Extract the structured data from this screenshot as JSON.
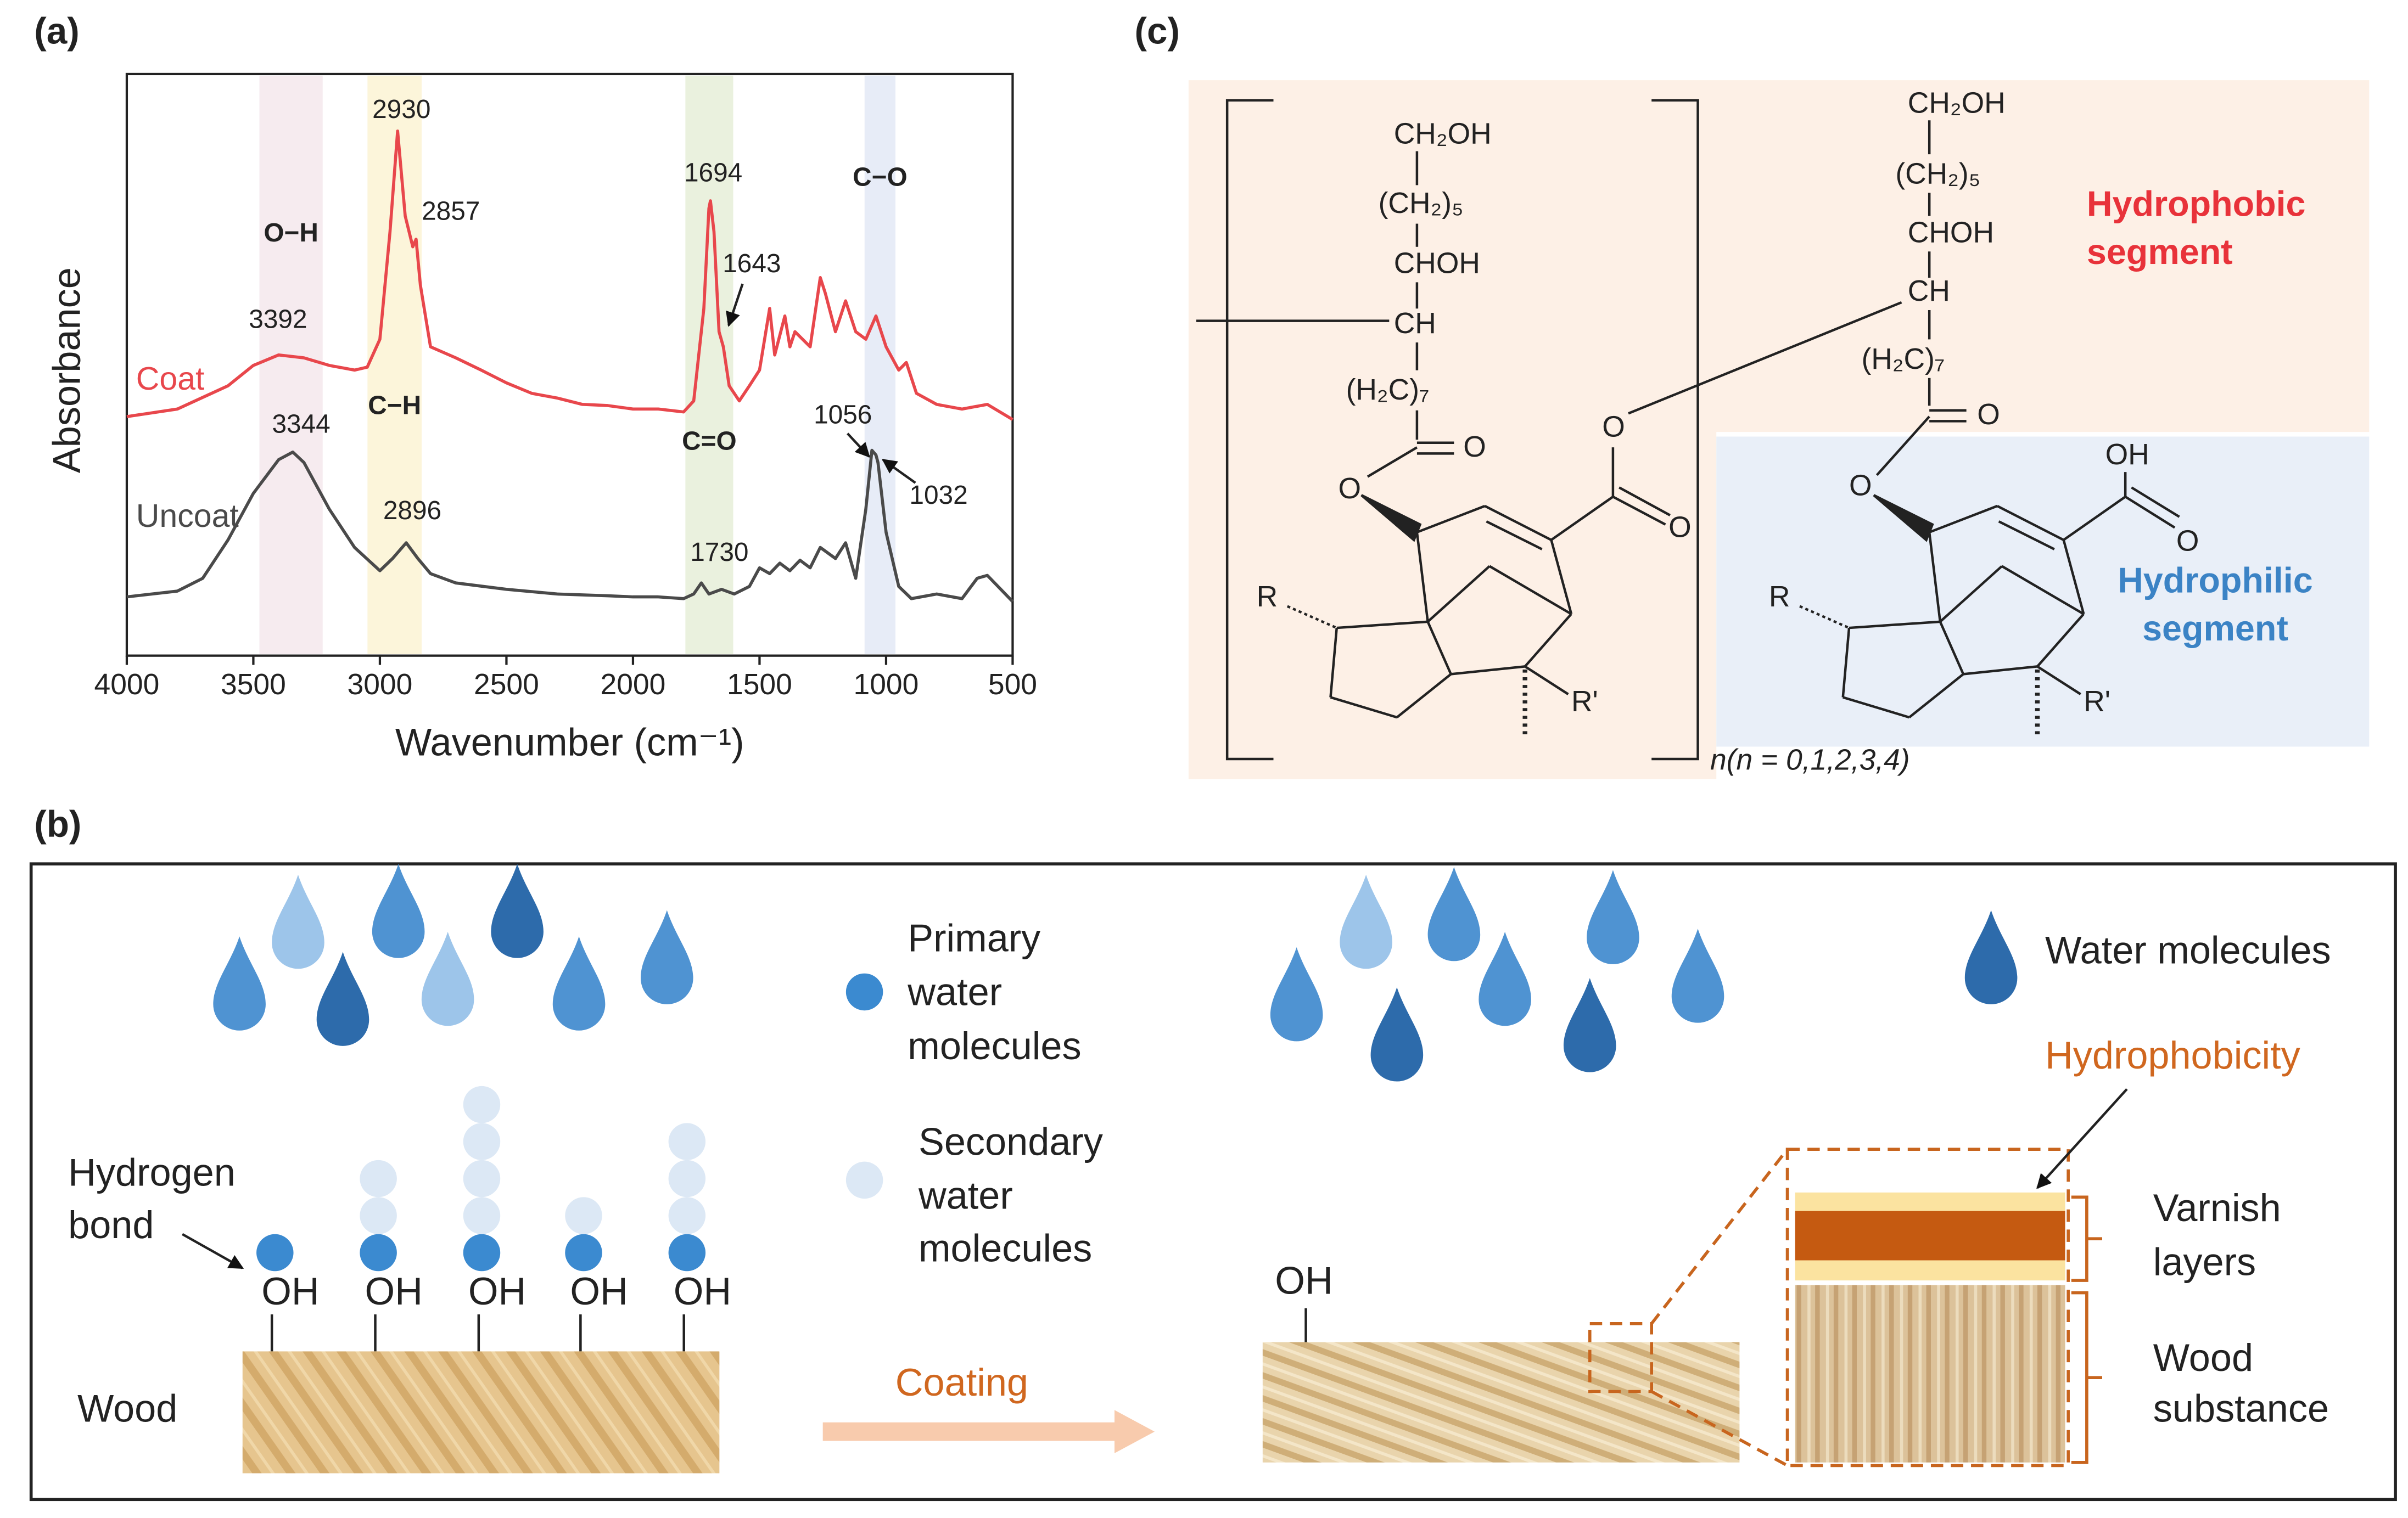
{
  "chart_data": {
    "type": "line",
    "xlabel": "Wavenumber (cm⁻¹)",
    "ylabel": "Absorbance",
    "xlim": [
      4000,
      500
    ],
    "ylim": [
      0,
      100
    ],
    "xticks": [
      4000,
      3500,
      3000,
      2500,
      2000,
      1500,
      1000,
      500
    ],
    "series": [
      {
        "name": "Coat",
        "color": "#e8474c",
        "x": [
          4000,
          3800,
          3600,
          3500,
          3400,
          3300,
          3200,
          3100,
          3050,
          3000,
          2960,
          2930,
          2900,
          2870,
          2857,
          2840,
          2800,
          2700,
          2600,
          2500,
          2400,
          2300,
          2200,
          2100,
          2000,
          1900,
          1800,
          1760,
          1720,
          1700,
          1694,
          1680,
          1660,
          1643,
          1620,
          1580,
          1540,
          1500,
          1460,
          1440,
          1400,
          1380,
          1360,
          1300,
          1260,
          1240,
          1200,
          1160,
          1120,
          1080,
          1040,
          1000,
          950,
          920,
          880,
          800,
          700,
          600,
          500
        ],
        "values": [
          41.1,
          42.4,
          46.4,
          49.9,
          51.7,
          51.2,
          49.9,
          49.1,
          49.6,
          54.4,
          72.9,
          90.2,
          75.6,
          70.3,
          71.6,
          63.7,
          53.1,
          51.2,
          49.1,
          46.9,
          45.1,
          44.3,
          43.2,
          43.0,
          42.4,
          42.4,
          41.9,
          43.8,
          59.7,
          76.9,
          78.2,
          72.9,
          55.7,
          53.1,
          46.4,
          43.8,
          46.4,
          49.1,
          59.7,
          51.7,
          58.4,
          53.1,
          55.7,
          53.1,
          65.0,
          62.3,
          55.7,
          61.0,
          55.7,
          54.4,
          58.4,
          53.1,
          49.1,
          50.4,
          45.1,
          43.2,
          42.4,
          43.2,
          40.6
        ]
      },
      {
        "name": "Uncoat",
        "color": "#4a4a4a",
        "x": [
          4000,
          3800,
          3700,
          3600,
          3500,
          3400,
          3344,
          3300,
          3200,
          3100,
          3000,
          2950,
          2896,
          2850,
          2800,
          2700,
          2500,
          2300,
          2100,
          2000,
          1900,
          1800,
          1760,
          1730,
          1700,
          1650,
          1600,
          1540,
          1500,
          1460,
          1420,
          1380,
          1340,
          1300,
          1260,
          1200,
          1160,
          1120,
          1080,
          1056,
          1040,
          1032,
          1000,
          950,
          900,
          800,
          700,
          640,
          600,
          500
        ],
        "values": [
          10.1,
          11.1,
          13.3,
          19.9,
          27.9,
          33.7,
          35.0,
          33.2,
          25.2,
          18.6,
          14.6,
          16.7,
          19.4,
          16.7,
          14.1,
          12.5,
          11.4,
          10.6,
          10.3,
          10.1,
          10.1,
          9.8,
          10.6,
          12.5,
          10.6,
          11.4,
          10.6,
          11.9,
          15.1,
          14.1,
          15.9,
          14.6,
          16.4,
          15.1,
          18.6,
          16.7,
          19.4,
          13.3,
          25.2,
          35.3,
          34.5,
          33.2,
          21.2,
          11.9,
          9.8,
          10.6,
          9.8,
          13.3,
          13.8,
          9.3
        ]
      }
    ],
    "bands": [
      {
        "label": "O−H",
        "from": 3476,
        "to": 3226,
        "color": "#f6ebef"
      },
      {
        "label": "C−H",
        "from": 3049,
        "to": 2835,
        "color": "#fcf5da"
      },
      {
        "label": "C=O",
        "from": 1793,
        "to": 1604,
        "color": "#eaf1de"
      },
      {
        "label": "C−O",
        "from": 1085,
        "to": 963,
        "color": "#e7ecf7"
      }
    ],
    "annotations": [
      "3392",
      "2930",
      "2857",
      "1694",
      "1643",
      "3344",
      "2896",
      "1730",
      "1056",
      "1032"
    ]
  },
  "panel_labels": [
    "(a)",
    "(b)",
    "(c)"
  ],
  "structure": {
    "left": {
      "ch2oh": "CH₂OH",
      "ch2_5": "(CH₂)₅",
      "choh": "CHOH",
      "ch": "CH",
      "h2c_7": "(H₂C)₇",
      "o_carbonyl": "O",
      "o_ester": "O",
      "o_link": "O",
      "o_carbonyl2": "O",
      "r": "R",
      "r_prime": "R'"
    },
    "right": {
      "ch2oh": "CH₂OH",
      "ch2_5": "(CH₂)₅",
      "choh": "CHOH",
      "ch": "CH",
      "h2c_7": "(H₂C)₇",
      "o_carbonyl": "O",
      "o_ester": "O",
      "oh": "OH",
      "o_acid": "O",
      "r": "R",
      "r_prime": "R'"
    },
    "repeat": "n(n = 0,1,2,3,4)",
    "hydrophobic": [
      "Hydrophobic",
      "segment"
    ],
    "hydrophilic": [
      "Hydrophilic",
      "segment"
    ]
  },
  "scheme": {
    "primary": [
      "Primary",
      "water",
      "molecules"
    ],
    "secondary": [
      "Secondary",
      "water",
      "molecules"
    ],
    "hydrogen_bond": [
      "Hydrogen",
      "bond"
    ],
    "oh_labels": [
      "OH",
      "OH",
      "OH",
      "OH",
      "OH",
      "OH"
    ],
    "wood": "Wood",
    "coating": "Coating",
    "water_molecules": "Water molecules",
    "hydrophobicity": "Hydrophobicity",
    "varnish": [
      "Varnish",
      "layers"
    ],
    "wood_substance": [
      "Wood",
      "substance"
    ]
  }
}
